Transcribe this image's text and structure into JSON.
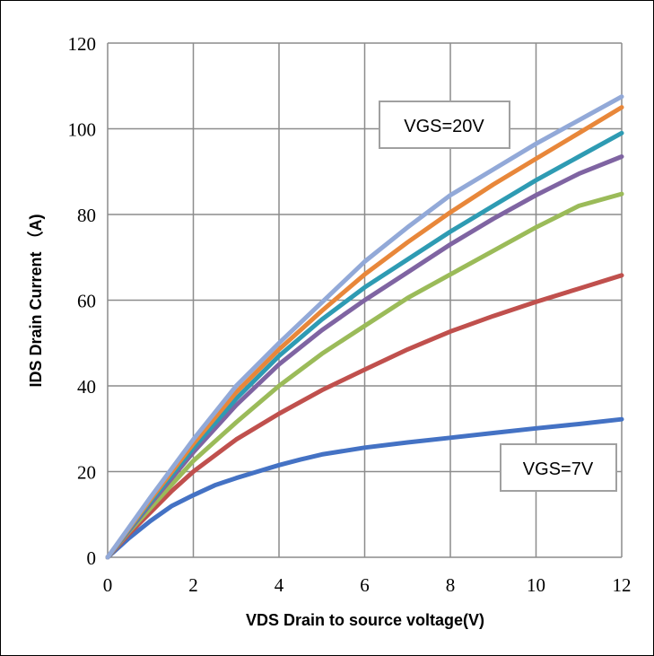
{
  "chart_data": {
    "type": "line",
    "title": "",
    "xlabel": "VDS Drain to source voltage(V)",
    "ylabel": "IDS Drain Current （A)",
    "xlim": [
      0,
      12
    ],
    "ylim": [
      0,
      120
    ],
    "x_ticks": [
      "0",
      "2",
      "4",
      "6",
      "8",
      "10",
      "12"
    ],
    "y_ticks": [
      "0",
      "20",
      "40",
      "60",
      "80",
      "100",
      "120"
    ],
    "grid": true,
    "legend": "none",
    "annotations": [
      {
        "text": "VGS=20V",
        "x": 7.5,
        "y": 100
      },
      {
        "text": "VGS=7V",
        "x": 10.4,
        "y": 20.5
      }
    ],
    "series": [
      {
        "color": "#4472C4",
        "x": [
          0,
          0.5,
          1,
          1.5,
          2,
          2.5,
          3,
          3.5,
          4,
          4.5,
          5,
          6,
          7,
          8,
          9,
          10,
          11,
          12
        ],
        "y": [
          0,
          4.5,
          8.5,
          12,
          14.5,
          16.8,
          18.5,
          20,
          21.5,
          22.8,
          24,
          25.6,
          26.8,
          27.9,
          29,
          30.1,
          31.1,
          32.2
        ]
      },
      {
        "color": "#C0504D",
        "x": [
          0,
          0.5,
          1,
          1.5,
          2,
          3,
          4,
          5,
          6,
          7,
          8,
          9,
          10,
          11,
          12
        ],
        "y": [
          0,
          5.5,
          10.5,
          15.5,
          20,
          27.5,
          33.5,
          39,
          43.8,
          48.5,
          52.7,
          56.3,
          59.6,
          62.7,
          65.8
        ]
      },
      {
        "color": "#9BBB59",
        "x": [
          0,
          0.5,
          1,
          1.5,
          2,
          3,
          4,
          5,
          6,
          7,
          8,
          9,
          10,
          11,
          12
        ],
        "y": [
          0,
          6,
          11.5,
          17,
          22.5,
          31.5,
          40,
          47.5,
          54,
          60.5,
          66,
          71.5,
          77,
          82,
          84.8
        ]
      },
      {
        "color": "#7F64A2",
        "x": [
          0,
          1,
          2,
          3,
          4,
          5,
          6,
          7,
          8,
          9,
          10,
          11,
          12
        ],
        "y": [
          0,
          12.5,
          24.5,
          35.5,
          45,
          53,
          60,
          66.5,
          73,
          79,
          84.5,
          89.5,
          93.5
        ]
      },
      {
        "color": "#2E9BB3",
        "x": [
          0,
          1,
          2,
          3,
          4,
          5,
          6,
          7,
          8,
          9,
          10,
          11,
          12
        ],
        "y": [
          0,
          13,
          25.5,
          37,
          47,
          55.5,
          63,
          69.5,
          76,
          82,
          88,
          93.5,
          99
        ]
      },
      {
        "color": "#E8873A",
        "x": [
          0,
          1,
          2,
          3,
          4,
          5,
          6,
          7,
          8,
          9,
          10,
          11,
          12
        ],
        "y": [
          0,
          13.5,
          26.5,
          38.5,
          48.5,
          57.5,
          66,
          73.5,
          80.5,
          87,
          93,
          99,
          105
        ]
      },
      {
        "color": "#92A9D8",
        "x": [
          0,
          1,
          2,
          3,
          4,
          5,
          6,
          7,
          8,
          9,
          10,
          11,
          12
        ],
        "y": [
          0,
          14,
          27.5,
          40,
          50,
          59.5,
          69,
          77,
          84.5,
          90.5,
          96.5,
          102,
          107.5
        ]
      }
    ]
  }
}
